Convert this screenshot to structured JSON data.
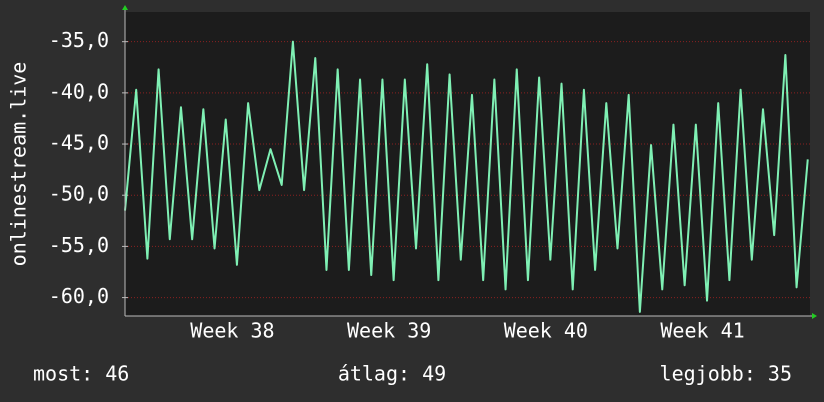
{
  "chart_data": {
    "type": "line",
    "y_label": "onlinestream.live",
    "x": [
      0,
      0.5,
      1,
      1.5,
      2,
      2.5,
      3,
      3.5,
      4,
      4.5,
      5,
      5.5,
      6,
      6.5,
      7,
      7.5,
      8,
      8.5,
      9,
      9.5,
      10,
      10.5,
      11,
      11.5,
      12,
      12.5,
      13,
      13.5,
      14,
      14.5,
      15,
      15.5,
      16,
      16.5,
      17,
      17.5,
      18,
      18.5,
      19,
      19.5,
      20,
      20.5,
      21,
      21.5,
      22,
      22.5,
      23,
      23.5,
      24,
      24.5,
      25,
      25.5,
      26,
      26.5,
      27,
      27.5,
      28,
      28.5,
      29,
      29.5,
      30,
      30.5
    ],
    "series": [
      {
        "color": "#7ff0b4",
        "values": [
          -51.5,
          -39.7,
          -56.2,
          -37.7,
          -54.3,
          -41.4,
          -54.3,
          -41.6,
          -55.2,
          -42.6,
          -56.8,
          -41.0,
          -49.5,
          -45.5,
          -49.0,
          -35.0,
          -49.5,
          -36.6,
          -57.3,
          -37.7,
          -57.3,
          -38.7,
          -57.8,
          -38.7,
          -58.3,
          -38.7,
          -55.2,
          -37.2,
          -58.3,
          -38.2,
          -56.3,
          -40.2,
          -58.3,
          -38.7,
          -59.2,
          -37.7,
          -58.3,
          -38.5,
          -56.3,
          -39.1,
          -59.2,
          -39.7,
          -57.3,
          -41.0,
          -55.2,
          -40.2,
          -61.4,
          -45.1,
          -59.2,
          -43.1,
          -58.8,
          -43.1,
          -60.3,
          -41.0,
          -58.3,
          -39.7,
          -56.3,
          -41.6,
          -53.9,
          -36.3,
          -59.0,
          -46.5
        ]
      }
    ],
    "xlim": [
      0,
      30.6
    ],
    "xticks": [
      {
        "value": 4.8,
        "label": "Week 38"
      },
      {
        "value": 11.8,
        "label": "Week 39"
      },
      {
        "value": 18.8,
        "label": "Week 40"
      },
      {
        "value": 25.8,
        "label": "Week 41"
      }
    ],
    "ylim": [
      -61.8,
      -32.1
    ],
    "yticks": [
      {
        "value": -60,
        "label": "-60,0"
      },
      {
        "value": -55,
        "label": "-55,0"
      },
      {
        "value": -50,
        "label": "-50,0"
      },
      {
        "value": -45,
        "label": "-45,0"
      },
      {
        "value": -40,
        "label": "-40,0"
      },
      {
        "value": -35,
        "label": "-35,0"
      }
    ],
    "grid": true,
    "footer": [
      "most: 46",
      "átlag: 49",
      "legjobb: 35"
    ]
  }
}
